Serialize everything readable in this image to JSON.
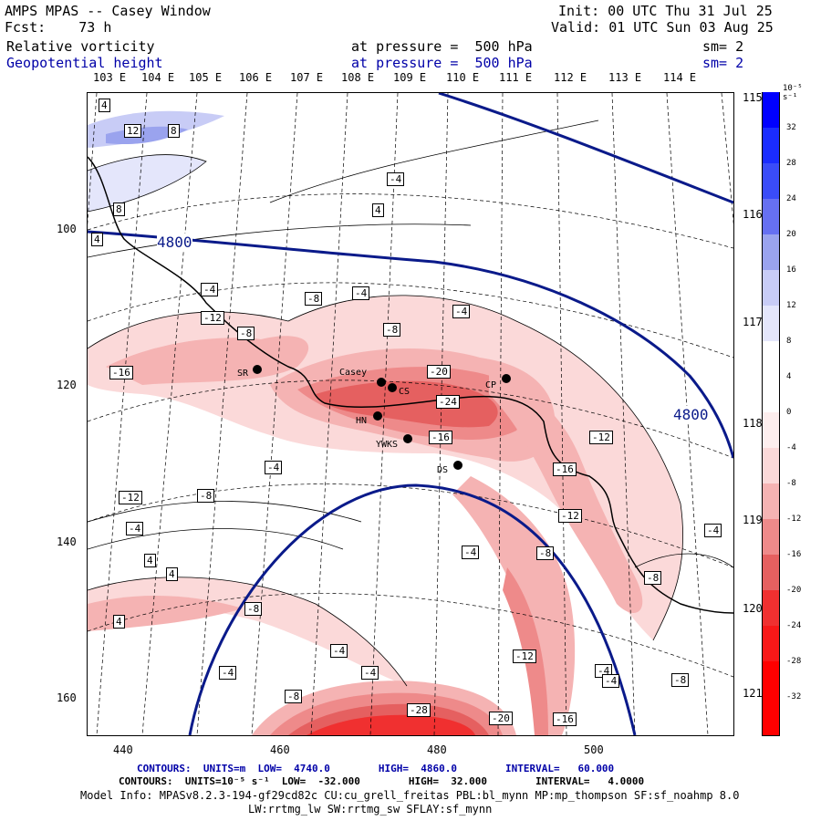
{
  "header": {
    "model": "AMPS MPAS -- Casey Window",
    "init": "Init: 00 UTC Thu 31 Jul 25",
    "fcst": "Fcst:    73 h",
    "valid": "Valid: 01 UTC Sun 03 Aug 25",
    "var1": "Relative vorticity",
    "var1_level": "at pressure =  500 hPa",
    "var1_sm": "sm= 2",
    "var2": "Geopotential height",
    "var2_level": "at pressure =  500 hPa",
    "var2_sm": "sm= 2"
  },
  "lon_labels_top": [
    "103 E",
    "104 E",
    "105 E",
    "106 E",
    "107 E",
    "108 E",
    "109 E",
    "110 E",
    "111 E",
    "112 E",
    "113 E",
    "114 E"
  ],
  "lon_labels_right": [
    "115 E",
    "116 E",
    "117 E",
    "118 E",
    "119 E",
    "120 E",
    "121 E"
  ],
  "y_ticks": [
    "100",
    "120",
    "140",
    "160"
  ],
  "x_ticks": [
    "440",
    "460",
    "480",
    "500"
  ],
  "colorbar": {
    "unit": "10⁻⁵ s⁻¹",
    "labels": [
      "32",
      "28",
      "24",
      "20",
      "16",
      "12",
      "8",
      "4",
      "0",
      "-4",
      "-8",
      "-12",
      "-16",
      "-20",
      "-24",
      "-28",
      "-32"
    ]
  },
  "sites": [
    "SR",
    "Casey",
    "CS",
    "CP",
    "HN",
    "YWKS",
    "DS"
  ],
  "height_labels": [
    "4800",
    "4800"
  ],
  "vort_labels": [
    "4",
    "12",
    "8",
    "-4",
    "4",
    "8",
    "4",
    "-4",
    "-8",
    "-4",
    "-12",
    "-8",
    "-8",
    "-4",
    "-16",
    "-20",
    "-24",
    "-16",
    "-12",
    "-4",
    "-16",
    "-12",
    "-8",
    "-12",
    "-4",
    "4",
    "-4",
    "-8",
    "4",
    "-8",
    "4",
    "-8",
    "-4",
    "-4",
    "-4",
    "-12",
    "-4",
    "-4",
    "-8",
    "-28",
    "-20",
    "-16",
    "-8",
    "-4"
  ],
  "footer": {
    "contours1": "CONTOURS:  UNITS=m  LOW=  4740.0        HIGH=  4860.0        INTERVAL=   60.000",
    "contours2": "CONTOURS:  UNITS=10⁻⁵ s⁻¹  LOW=  -32.000        HIGH=  32.000        INTERVAL=   4.0000",
    "model_info": "Model Info: MPASv8.2.3-194-gf29cd82c CU:cu_grell_freitas PBL:bl_mynn MP:mp_thompson SF:sf_noahmp 8.0",
    "model_info2": "LW:rrtmg_lw SW:rrtmg_sw SFLAY:sf_mynn"
  },
  "colors": {
    "height_contour": "#0a1a8a",
    "vort_neg": "#ff0000",
    "vort_pos": "#0000ff"
  }
}
